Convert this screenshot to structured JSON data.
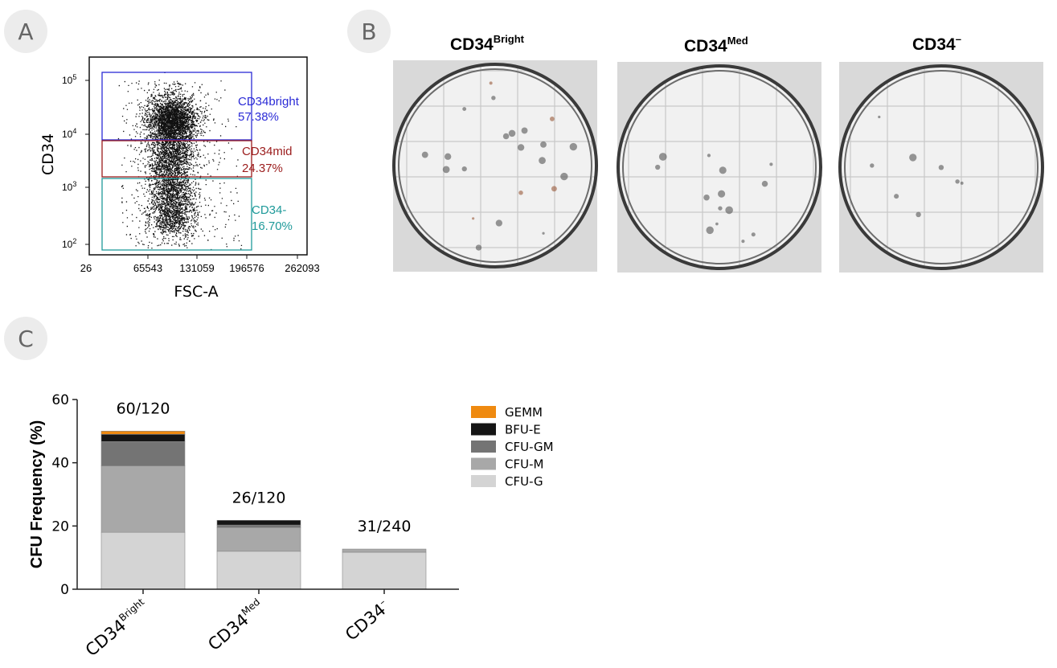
{
  "panels": {
    "a": "A",
    "b": "B",
    "c": "C"
  },
  "flow": {
    "xlabel": "FSC-A",
    "ylabel": "CD34",
    "x_ticks": [
      "26",
      "65543",
      "131059",
      "196576",
      "262093"
    ],
    "y_ticks": [
      {
        "base": "10",
        "exp": "5"
      },
      {
        "base": "10",
        "exp": "4"
      },
      {
        "base": "10",
        "exp": "3"
      },
      {
        "base": "10",
        "exp": "2"
      }
    ],
    "gates": [
      {
        "name": "CD34bright",
        "pct": "57.38%",
        "color": "#2b2bd6"
      },
      {
        "name": "CD34mid",
        "pct": "24.37%",
        "color": "#9b1c1c"
      },
      {
        "name": "CD34-",
        "pct": "16.70%",
        "color": "#1f9a9a"
      }
    ]
  },
  "photos": [
    {
      "base": "CD34",
      "sup": "Bright"
    },
    {
      "base": "CD34",
      "sup": "Med"
    },
    {
      "base": "CD34",
      "sup": "–"
    }
  ],
  "chart_data": {
    "type": "bar",
    "stacked": true,
    "ylabel": "CFU Frequency (%)",
    "ylim": [
      0,
      60
    ],
    "yticks": [
      "0",
      "20",
      "40",
      "60"
    ],
    "categories": [
      {
        "base": "CD34",
        "sup": "Bright"
      },
      {
        "base": "CD34",
        "sup": "Med"
      },
      {
        "base": "CD34",
        "sup": "–"
      }
    ],
    "bar_labels": [
      "60/120",
      "26/120",
      "31/240"
    ],
    "series": [
      {
        "name": "CFU-G",
        "color": "#d4d4d4",
        "values": [
          18,
          12,
          11.7
        ]
      },
      {
        "name": "CFU-M",
        "color": "#a8a8a8",
        "values": [
          21,
          7.5,
          1
        ]
      },
      {
        "name": "CFU-GM",
        "color": "#747474",
        "values": [
          7.7,
          0.8,
          0
        ]
      },
      {
        "name": "BFU-E",
        "color": "#151515",
        "values": [
          2.3,
          1.5,
          0
        ]
      },
      {
        "name": "GEMM",
        "color": "#ef8a10",
        "values": [
          1,
          0,
          0
        ]
      }
    ],
    "legend_position": "top-right"
  }
}
